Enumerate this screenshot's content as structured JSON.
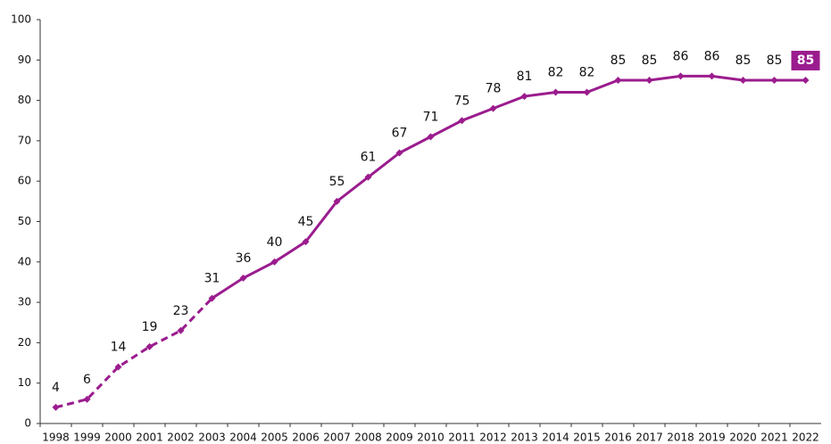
{
  "chart_data": {
    "type": "line",
    "categories": [
      "1998",
      "1999",
      "2000",
      "2001",
      "2002",
      "2003",
      "2004",
      "2005",
      "2006",
      "2007",
      "2008",
      "2009",
      "2010",
      "2011",
      "2012",
      "2013",
      "2014",
      "2015",
      "2016",
      "2017",
      "2018",
      "2019",
      "2020",
      "2021",
      "2022"
    ],
    "values": [
      4,
      6,
      14,
      19,
      23,
      31,
      36,
      40,
      45,
      55,
      61,
      67,
      71,
      75,
      78,
      81,
      82,
      82,
      85,
      85,
      86,
      86,
      85,
      85,
      85
    ],
    "color": "#9b1c8e",
    "dashed_through": "2003",
    "highlight_last": true,
    "ylim": [
      0,
      100
    ],
    "yticks": [
      0,
      10,
      20,
      30,
      40,
      50,
      60,
      70,
      80,
      90,
      100
    ],
    "grid": false
  }
}
